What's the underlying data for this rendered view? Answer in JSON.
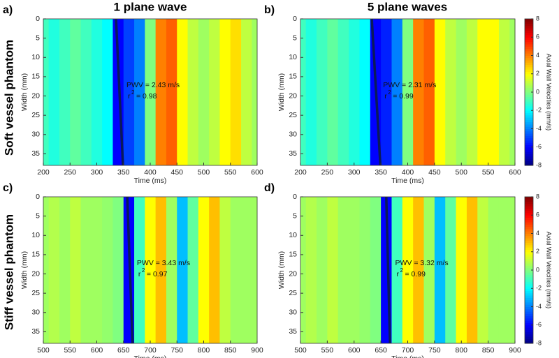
{
  "row_labels": [
    "Soft vessel phantom",
    "Stiff vessel phantom"
  ],
  "chart_data": [
    {
      "type": "heatmap",
      "panel": "a)",
      "title": "1 plane wave",
      "xlabel": "Time (ms)",
      "ylabel": "Width (mm)",
      "x": [
        200,
        220,
        240,
        260,
        280,
        300,
        320,
        340,
        360,
        380,
        400,
        420,
        440,
        460,
        480,
        500,
        520,
        540,
        560,
        580,
        600
      ],
      "values": [
        -1,
        -1.5,
        -1,
        -0.5,
        -1,
        -1.5,
        -2,
        -6,
        -5,
        -4,
        0,
        4,
        4.5,
        2,
        1,
        0.5,
        1,
        2,
        2.5,
        1,
        0.5
      ],
      "fit": {
        "x": [
          336,
          349
        ],
        "y": [
          0,
          38
        ]
      },
      "annotation": {
        "pwv": "PWV = 2.43 m/s",
        "r": "r",
        "sup": "2",
        "r2": "= 0.98"
      },
      "xlim": [
        200,
        600
      ],
      "xticks": [
        200,
        250,
        300,
        350,
        400,
        450,
        500,
        550,
        600
      ],
      "ylim": [
        0,
        38
      ],
      "y_inverted": true,
      "yticks": [
        0,
        5,
        10,
        15,
        20,
        25,
        30,
        35
      ],
      "colormap": "jet",
      "clim": [
        -8,
        8
      ]
    },
    {
      "type": "heatmap",
      "panel": "b)",
      "title": "5 plane waves",
      "xlabel": "Time (ms)",
      "ylabel": "Width (mm)",
      "x": [
        200,
        220,
        240,
        260,
        280,
        300,
        320,
        340,
        360,
        380,
        400,
        420,
        440,
        460,
        480,
        500,
        520,
        540,
        560,
        580,
        600
      ],
      "values": [
        -1,
        -1.5,
        -1,
        -0.5,
        -1,
        -1.5,
        -2,
        -6,
        -5.5,
        -4,
        0,
        4,
        4.5,
        2,
        1,
        0.5,
        1,
        2,
        2,
        1,
        0.5
      ],
      "fit": {
        "x": [
          333,
          349
        ],
        "y": [
          0,
          38
        ]
      },
      "annotation": {
        "pwv": "PWV = 2.31 m/s",
        "r": "r",
        "sup": "2",
        "r2": "= 0.99"
      },
      "xlim": [
        200,
        600
      ],
      "xticks": [
        200,
        250,
        300,
        350,
        400,
        450,
        500,
        550,
        600
      ],
      "ylim": [
        0,
        38
      ],
      "y_inverted": true,
      "yticks": [
        0,
        5,
        10,
        15,
        20,
        25,
        30,
        35
      ],
      "colormap": "jet",
      "clim": [
        -8,
        8
      ],
      "colorbar": {
        "label": "Axial Wall Velocities (mm/s)",
        "ticks": [
          -8,
          -6,
          -4,
          -2,
          0,
          2,
          4,
          6,
          8
        ]
      }
    },
    {
      "type": "heatmap",
      "panel": "c)",
      "xlabel": "Time (ms)",
      "ylabel": "Width (mm)",
      "x": [
        500,
        520,
        540,
        560,
        580,
        600,
        620,
        640,
        660,
        680,
        700,
        720,
        740,
        760,
        780,
        800,
        820,
        840,
        860,
        880,
        900
      ],
      "values": [
        0.5,
        0.8,
        0.5,
        1,
        0.5,
        0.5,
        0.3,
        0,
        -6,
        -1,
        2,
        3,
        0.5,
        -3,
        -0.5,
        2,
        3,
        1,
        0.5,
        0.5,
        0.5
      ],
      "fit": {
        "x": [
          657,
          667
        ],
        "y": [
          0,
          38
        ]
      },
      "annotation": {
        "pwv": "PWV = 3.43 m/s",
        "r": "r",
        "sup": "2",
        "r2": "= 0.97"
      },
      "xlim": [
        500,
        900
      ],
      "xticks": [
        500,
        550,
        600,
        650,
        700,
        750,
        800,
        850,
        900
      ],
      "ylim": [
        0,
        38
      ],
      "y_inverted": true,
      "yticks": [
        0,
        5,
        10,
        15,
        20,
        25,
        30,
        35
      ],
      "colormap": "jet",
      "clim": [
        -8,
        8
      ]
    },
    {
      "type": "heatmap",
      "panel": "d)",
      "xlabel": "Time (ms)",
      "ylabel": "Width (mm)",
      "x": [
        500,
        520,
        540,
        560,
        580,
        600,
        620,
        640,
        660,
        680,
        700,
        720,
        740,
        760,
        780,
        800,
        820,
        840,
        860,
        880,
        900
      ],
      "values": [
        0.5,
        0.8,
        0.5,
        1,
        0.5,
        0.5,
        0.3,
        0,
        -6,
        -1,
        2,
        3,
        0.5,
        -3,
        -0.5,
        2,
        3,
        1,
        0.5,
        0.5,
        0.5
      ],
      "fit": {
        "x": [
          660,
          667
        ],
        "y": [
          0,
          38
        ]
      },
      "annotation": {
        "pwv": "PWV = 3.32 m/s",
        "r": "r",
        "sup": "2",
        "r2": "= 0.99"
      },
      "xlim": [
        500,
        900
      ],
      "xticks": [
        500,
        550,
        600,
        650,
        700,
        750,
        800,
        850,
        900
      ],
      "ylim": [
        0,
        38
      ],
      "y_inverted": true,
      "yticks": [
        0,
        5,
        10,
        15,
        20,
        25,
        30,
        35
      ],
      "colormap": "jet",
      "clim": [
        -8,
        8
      ],
      "colorbar": {
        "label": "Axial Wall Velocities (mm/s)",
        "ticks": [
          -8,
          -6,
          -4,
          -2,
          0,
          2,
          4,
          6,
          8
        ]
      }
    }
  ]
}
